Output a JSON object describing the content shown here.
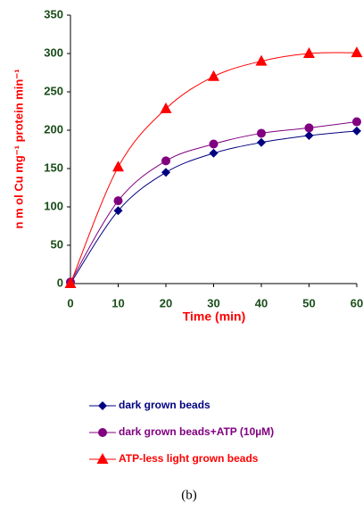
{
  "chart_data": {
    "type": "line",
    "x_label": "Time (min)",
    "y_label": "n m ol Cu mg⁻¹ protein min⁻¹",
    "caption": "(b)",
    "x": [
      0,
      10,
      20,
      30,
      40,
      50,
      60
    ],
    "xlim": [
      0,
      60
    ],
    "xticks": [
      0,
      10,
      20,
      30,
      40,
      50,
      60
    ],
    "ylim": [
      0,
      350
    ],
    "yticks": [
      0,
      50,
      100,
      150,
      200,
      250,
      300,
      350
    ],
    "grid": false,
    "series": [
      {
        "name": "dark grown beads",
        "color": "#000080",
        "marker": "diamond",
        "values": [
          0,
          95,
          145,
          170,
          184,
          193,
          199
        ]
      },
      {
        "name": "dark grown beads+ATP (10µM)",
        "color": "#800080",
        "marker": "circle",
        "values": [
          2,
          108,
          160,
          182,
          196,
          203,
          211
        ]
      },
      {
        "name": "ATP-less light grown beads",
        "color": "#ff0000",
        "marker": "triangle",
        "values": [
          0,
          152,
          228,
          270,
          290,
          300,
          301
        ]
      }
    ]
  }
}
